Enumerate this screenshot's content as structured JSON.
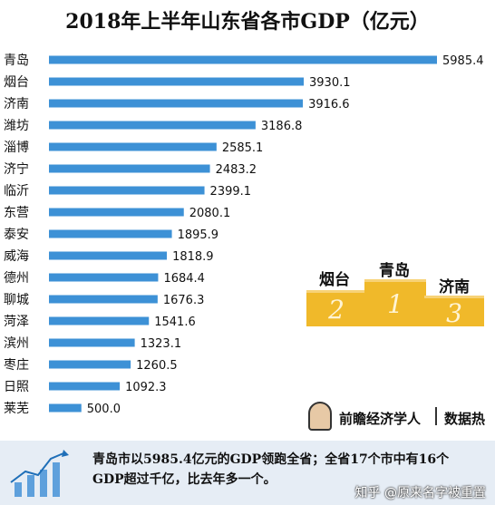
{
  "title": "2018年上半年山东省各市GDP（亿元）",
  "chart_data": {
    "type": "bar",
    "orientation": "horizontal",
    "title": "2018年上半年山东省各市GDP（亿元）",
    "categories": [
      "青岛",
      "烟台",
      "济南",
      "潍坊",
      "淄博",
      "济宁",
      "临沂",
      "东营",
      "泰安",
      "威海",
      "德州",
      "聊城",
      "菏泽",
      "滨州",
      "枣庄",
      "日照",
      "莱芜"
    ],
    "values": [
      5985.4,
      3930.1,
      3916.6,
      3186.8,
      2585.1,
      2483.2,
      2399.1,
      2080.1,
      1895.9,
      1818.9,
      1684.4,
      1676.3,
      1541.6,
      1323.1,
      1260.5,
      1092.3,
      500.0
    ],
    "value_labels": [
      "5985.4",
      "3930.1",
      "3916.6",
      "3186.8",
      "2585.1",
      "2483.2",
      "2399.1",
      "2080.1",
      "1895.9",
      "1818.9",
      "1684.4",
      "1676.3",
      "1541.6",
      "1323.1",
      "1260.5",
      "1092.3",
      "500.0"
    ],
    "bar_color": "#3d91d6",
    "grid": false,
    "legend": "none"
  },
  "podium": {
    "first": {
      "label": "青岛",
      "rank": "1"
    },
    "second": {
      "label": "烟台",
      "rank": "2"
    },
    "third": {
      "label": "济南",
      "rank": "3"
    },
    "color": "#f0b92a"
  },
  "brand": {
    "name": "前瞻经济学人",
    "tag": "数据热",
    "icon": "person-avatar-icon"
  },
  "footer": {
    "note": "青岛市以5985.4亿元的GDP领跑全省；全省17个市中有16个GDP超过千亿，比去年多一个。",
    "watermark": "知乎 @原来名字被重置",
    "icon": "rising-chart-icon"
  }
}
